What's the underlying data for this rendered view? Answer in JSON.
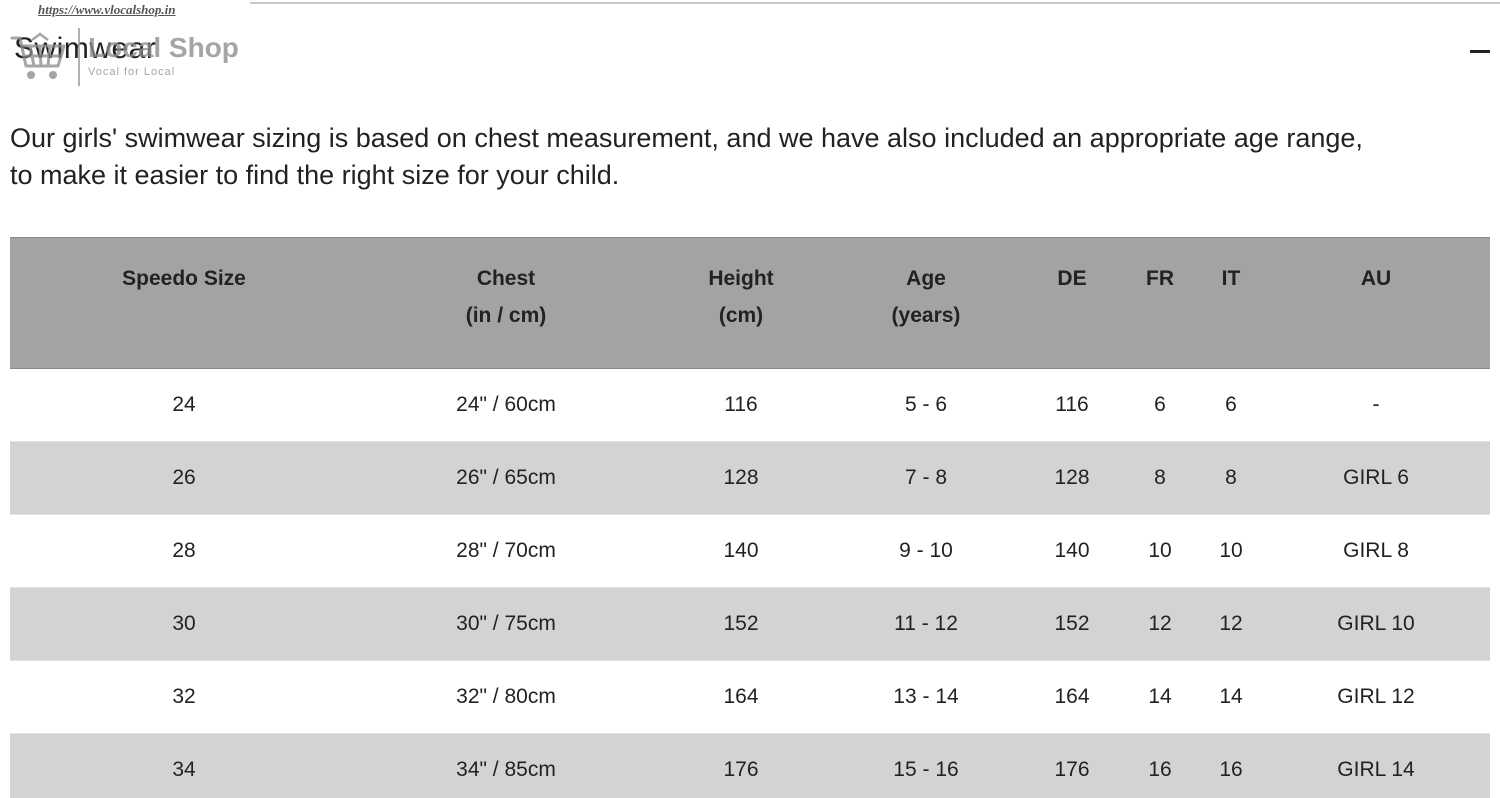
{
  "watermark": {
    "url": "https://www.vlocalshop.in",
    "logo_name": "Local Shop",
    "logo_tagline": "Vocal for Local"
  },
  "section": {
    "title": "Swimwear",
    "collapse_icon": "minus-icon"
  },
  "intro": {
    "line1": "Our girls' swimwear sizing is based on chest measurement, and we have also included an appropriate age range,",
    "line2": "to make it easier to find the right size for your child."
  },
  "table": {
    "headers": [
      {
        "line1": "Speedo Size",
        "line2": ""
      },
      {
        "line1": "Chest",
        "line2": "(in / cm)"
      },
      {
        "line1": "Height",
        "line2": "(cm)"
      },
      {
        "line1": "Age",
        "line2": "(years)"
      },
      {
        "line1": "DE",
        "line2": ""
      },
      {
        "line1": "FR",
        "line2": ""
      },
      {
        "line1": "IT",
        "line2": ""
      },
      {
        "line1": "AU",
        "line2": ""
      }
    ],
    "rows": [
      [
        "24",
        "24\" / 60cm",
        "116",
        "5 - 6",
        "116",
        "6",
        "6",
        "-"
      ],
      [
        "26",
        "26\" / 65cm",
        "128",
        "7 - 8",
        "128",
        "8",
        "8",
        "GIRL 6"
      ],
      [
        "28",
        "28\" / 70cm",
        "140",
        "9 - 10",
        "140",
        "10",
        "10",
        "GIRL 8"
      ],
      [
        "30",
        "30\" / 75cm",
        "152",
        "11 - 12",
        "152",
        "12",
        "12",
        "GIRL 10"
      ],
      [
        "32",
        "32\" / 80cm",
        "164",
        "13 - 14",
        "164",
        "14",
        "14",
        "GIRL 12"
      ],
      [
        "34",
        "34\" / 85cm",
        "176",
        "15 - 16",
        "176",
        "16",
        "16",
        "GIRL 14"
      ]
    ]
  }
}
